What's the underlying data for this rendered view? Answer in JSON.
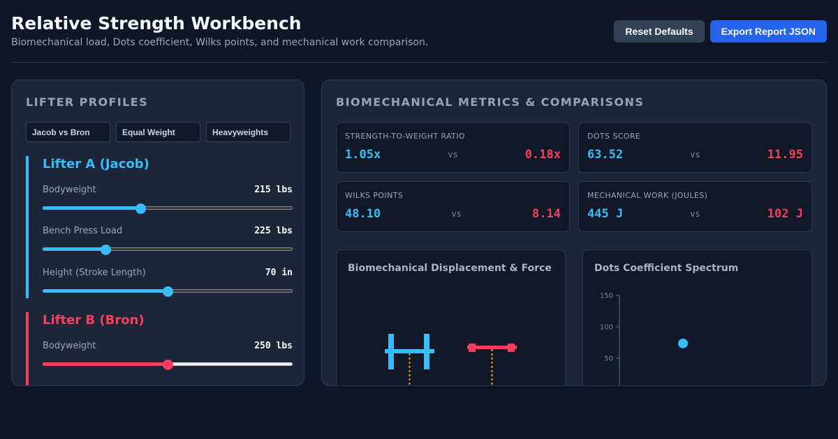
{
  "header": {
    "title": "Relative Strength Workbench",
    "subtitle": "Biomechanical load, Dots coefficient, Wilks points, and mechanical work comparison.",
    "reset_label": "Reset Defaults",
    "export_label": "Export Report JSON"
  },
  "profiles": {
    "heading": "LIFTER PROFILES",
    "presets": [
      "Jacob vs Bron",
      "Equal Weight",
      "Heavyweights"
    ],
    "lifter_a": {
      "name": "Lifter A (Jacob)",
      "color": "#38bdf8",
      "fields": [
        {
          "label": "Bodyweight",
          "value": "215 lbs",
          "level": 0.39
        },
        {
          "label": "Bench Press Load",
          "value": "225 lbs",
          "level": 0.25
        },
        {
          "label": "Height (Stroke Length)",
          "value": "70 in",
          "level": 0.5
        }
      ]
    },
    "lifter_b": {
      "name": "Lifter B (Bron)",
      "color": "#f43f5e",
      "fields": [
        {
          "label": "Bodyweight",
          "value": "250 lbs",
          "level": 0.5
        }
      ]
    }
  },
  "metrics": {
    "heading": "BIOMECHANICAL METRICS & COMPARISONS",
    "vs_label": "vs",
    "cards": [
      {
        "label": "STRENGTH-TO-WEIGHT RATIO",
        "a": "1.05x",
        "b": "0.18x"
      },
      {
        "label": "DOTS SCORE",
        "a": "63.52",
        "b": "11.95"
      },
      {
        "label": "WILKS POINTS",
        "a": "48.10",
        "b": "8.14"
      },
      {
        "label": "MECHANICAL WORK (JOULES)",
        "a": "445 J",
        "b": "102 J"
      }
    ]
  },
  "charts": {
    "displacement_title": "Biomechanical Displacement & Force",
    "spectrum_title": "Dots Coefficient Spectrum",
    "bar_color_a": "#38bdf8",
    "bar_color_b": "#f43f5e",
    "stroke_color": "#f59e0b"
  },
  "chart_data": {
    "type": "scatter",
    "title": "Dots Coefficient Spectrum",
    "ytick_labels": [
      "150",
      "100",
      "50"
    ],
    "series": [
      {
        "x": [
          215
        ],
        "y": [
          63.52
        ]
      }
    ]
  }
}
